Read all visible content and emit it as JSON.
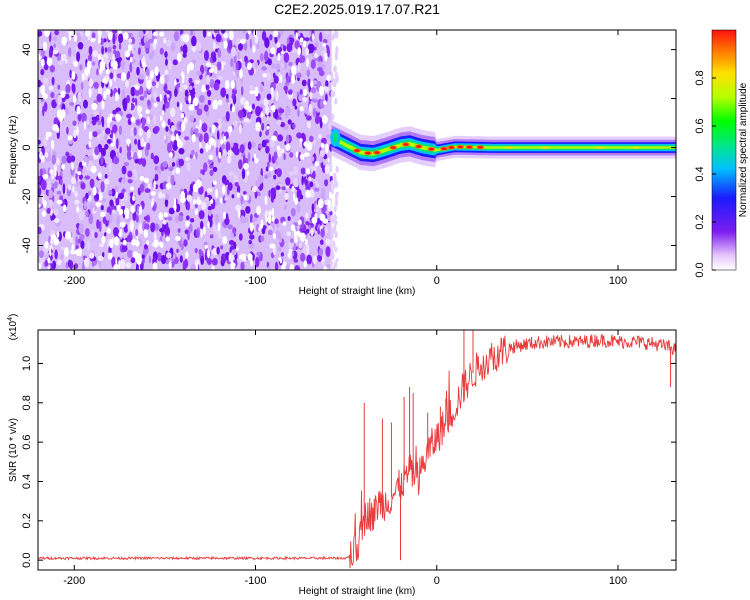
{
  "title": "C2E2.2025.019.17.07.R21",
  "chart_data": [
    {
      "type": "heatmap",
      "xlabel": "Height of straight line (km)",
      "ylabel": "Frequency (Hz)",
      "xlim": [
        -220,
        132
      ],
      "ylim": [
        -50,
        48
      ],
      "x_ticks": [
        -200,
        -100,
        0,
        100
      ],
      "y_ticks": [
        -40,
        -20,
        0,
        20,
        40
      ],
      "noise_region_x": [
        -220,
        -58
      ],
      "signal_track": [
        {
          "x": -58,
          "freq": 4.0
        },
        {
          "x": -50,
          "freq": 1.0
        },
        {
          "x": -42,
          "freq": -2.0
        },
        {
          "x": -35,
          "freq": -2.5
        },
        {
          "x": -28,
          "freq": -1.0
        },
        {
          "x": -20,
          "freq": 1.0
        },
        {
          "x": -15,
          "freq": 1.5
        },
        {
          "x": -8,
          "freq": 0.0
        },
        {
          "x": 0,
          "freq": -1.0
        },
        {
          "x": 10,
          "freq": 0.3
        },
        {
          "x": 30,
          "freq": 0.0
        },
        {
          "x": 60,
          "freq": 0.0
        },
        {
          "x": 100,
          "freq": 0.0
        },
        {
          "x": 132,
          "freq": 0.0
        }
      ],
      "colorbar": {
        "label": "Normalized spectral amplitude",
        "range": [
          0,
          1
        ],
        "ticks": [
          "0.0",
          "0.2",
          "0.4",
          "0.6",
          "0.8"
        ]
      }
    },
    {
      "type": "line",
      "xlabel": "Height of straight line (km)",
      "ylabel": "SNR (10 * v/v)",
      "scale_note": "(x10",
      "scale_exp": "4",
      "scale_close": ")",
      "xlim": [
        -220,
        132
      ],
      "ylim": [
        -0.05,
        1.17
      ],
      "x_ticks": [
        -200,
        -100,
        0,
        100
      ],
      "y_ticks": [
        "0.0",
        "0.2",
        "0.4",
        "0.6",
        "0.8",
        "1.0"
      ],
      "color": "#e83c3c",
      "series": [
        {
          "x": [
            -220,
            -100,
            -50,
            -45,
            -42,
            -40,
            -38,
            -35,
            -32,
            -30,
            -25,
            -20,
            -15,
            -10,
            -5,
            0,
            5,
            10,
            15,
            20,
            25,
            30,
            35,
            40,
            50,
            60,
            70,
            80,
            90,
            100,
            110,
            120,
            125,
            130,
            132
          ],
          "y": [
            0.01,
            0.01,
            0.01,
            0.04,
            0.12,
            0.2,
            0.25,
            0.22,
            0.3,
            0.28,
            0.32,
            0.38,
            0.45,
            0.42,
            0.55,
            0.62,
            0.7,
            0.78,
            0.88,
            0.95,
            1.0,
            1.03,
            1.06,
            1.08,
            1.1,
            1.11,
            1.11,
            1.11,
            1.12,
            1.11,
            1.11,
            1.1,
            1.09,
            1.08,
            1.07
          ]
        }
      ],
      "spikes": [
        {
          "x": -40,
          "y": 0.8
        },
        {
          "x": -30,
          "y": 0.72
        },
        {
          "x": -25,
          "y": 0.7
        },
        {
          "x": -18,
          "y": 0.83
        },
        {
          "x": -15,
          "y": 0.88
        },
        {
          "x": -13,
          "y": 0.85
        },
        {
          "x": -5,
          "y": 0.75
        },
        {
          "x": 2,
          "y": 0.78
        },
        {
          "x": 5,
          "y": 0.82
        },
        {
          "x": 15,
          "y": 1.17
        },
        {
          "x": 20,
          "y": 1.17
        }
      ],
      "dips": [
        {
          "x": -20,
          "y": 0.0
        },
        {
          "x": 129,
          "y": 0.88
        }
      ]
    }
  ]
}
